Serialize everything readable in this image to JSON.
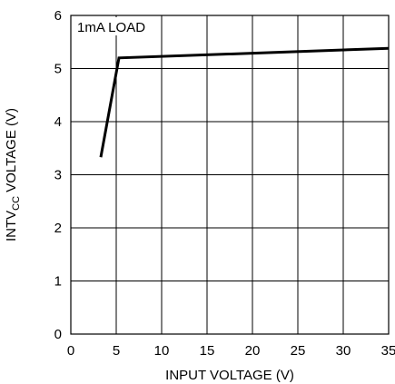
{
  "chart_data": {
    "type": "line",
    "annotation": "1mA LOAD",
    "xlabel": "INPUT VOLTAGE (V)",
    "ylabel": {
      "prefix": "INTV",
      "subscript": "CC",
      "suffix": " VOLTAGE (V)"
    },
    "xlim": [
      0,
      35
    ],
    "ylim": [
      0,
      6
    ],
    "xticks": [
      "0",
      "5",
      "10",
      "15",
      "20",
      "25",
      "30",
      "35"
    ],
    "yticks": [
      "0",
      "1",
      "2",
      "3",
      "4",
      "5",
      "6"
    ],
    "grid": true,
    "series": [
      {
        "x": [
          3.3,
          5.3,
          35
        ],
        "y": [
          3.33,
          5.2,
          5.38
        ]
      }
    ]
  }
}
